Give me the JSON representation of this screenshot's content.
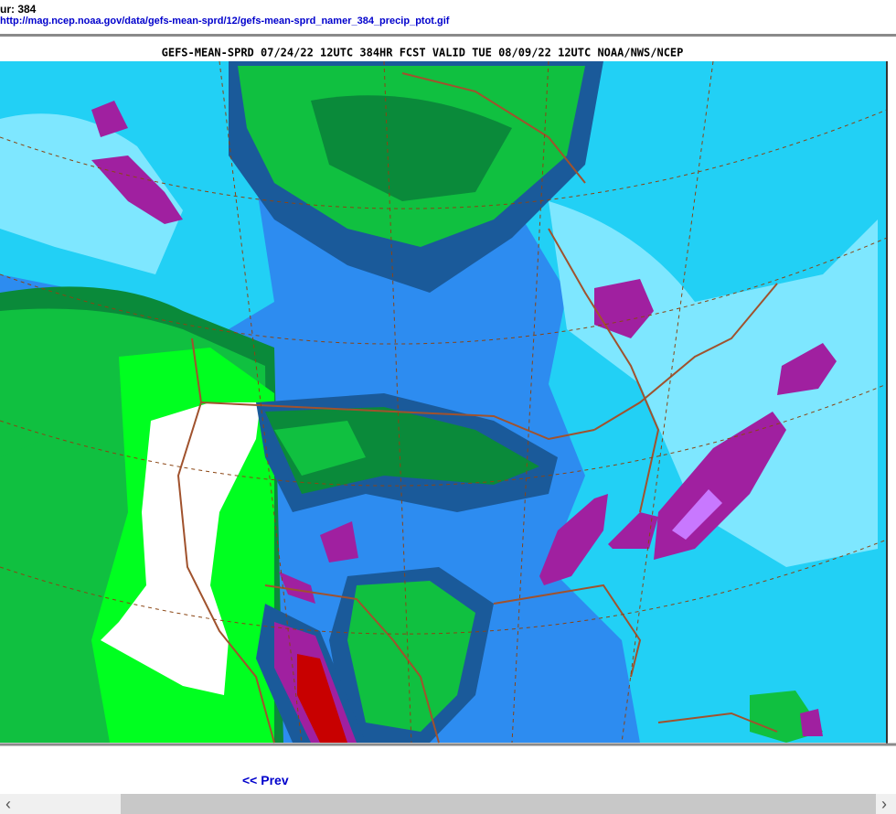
{
  "header": {
    "hour_label": "ur: 384",
    "image_url": "http://mag.ncep.noaa.gov/data/gefs-mean-sprd/12/gefs-mean-sprd_namer_384_precip_ptot.gif"
  },
  "map": {
    "title": "GEFS-MEAN-SPRD 07/24/22 12UTC 384HR FCST VALID TUE 08/09/22 12UTC NOAA/NWS/NCEP"
  },
  "nav": {
    "prev": "<< Prev"
  }
}
